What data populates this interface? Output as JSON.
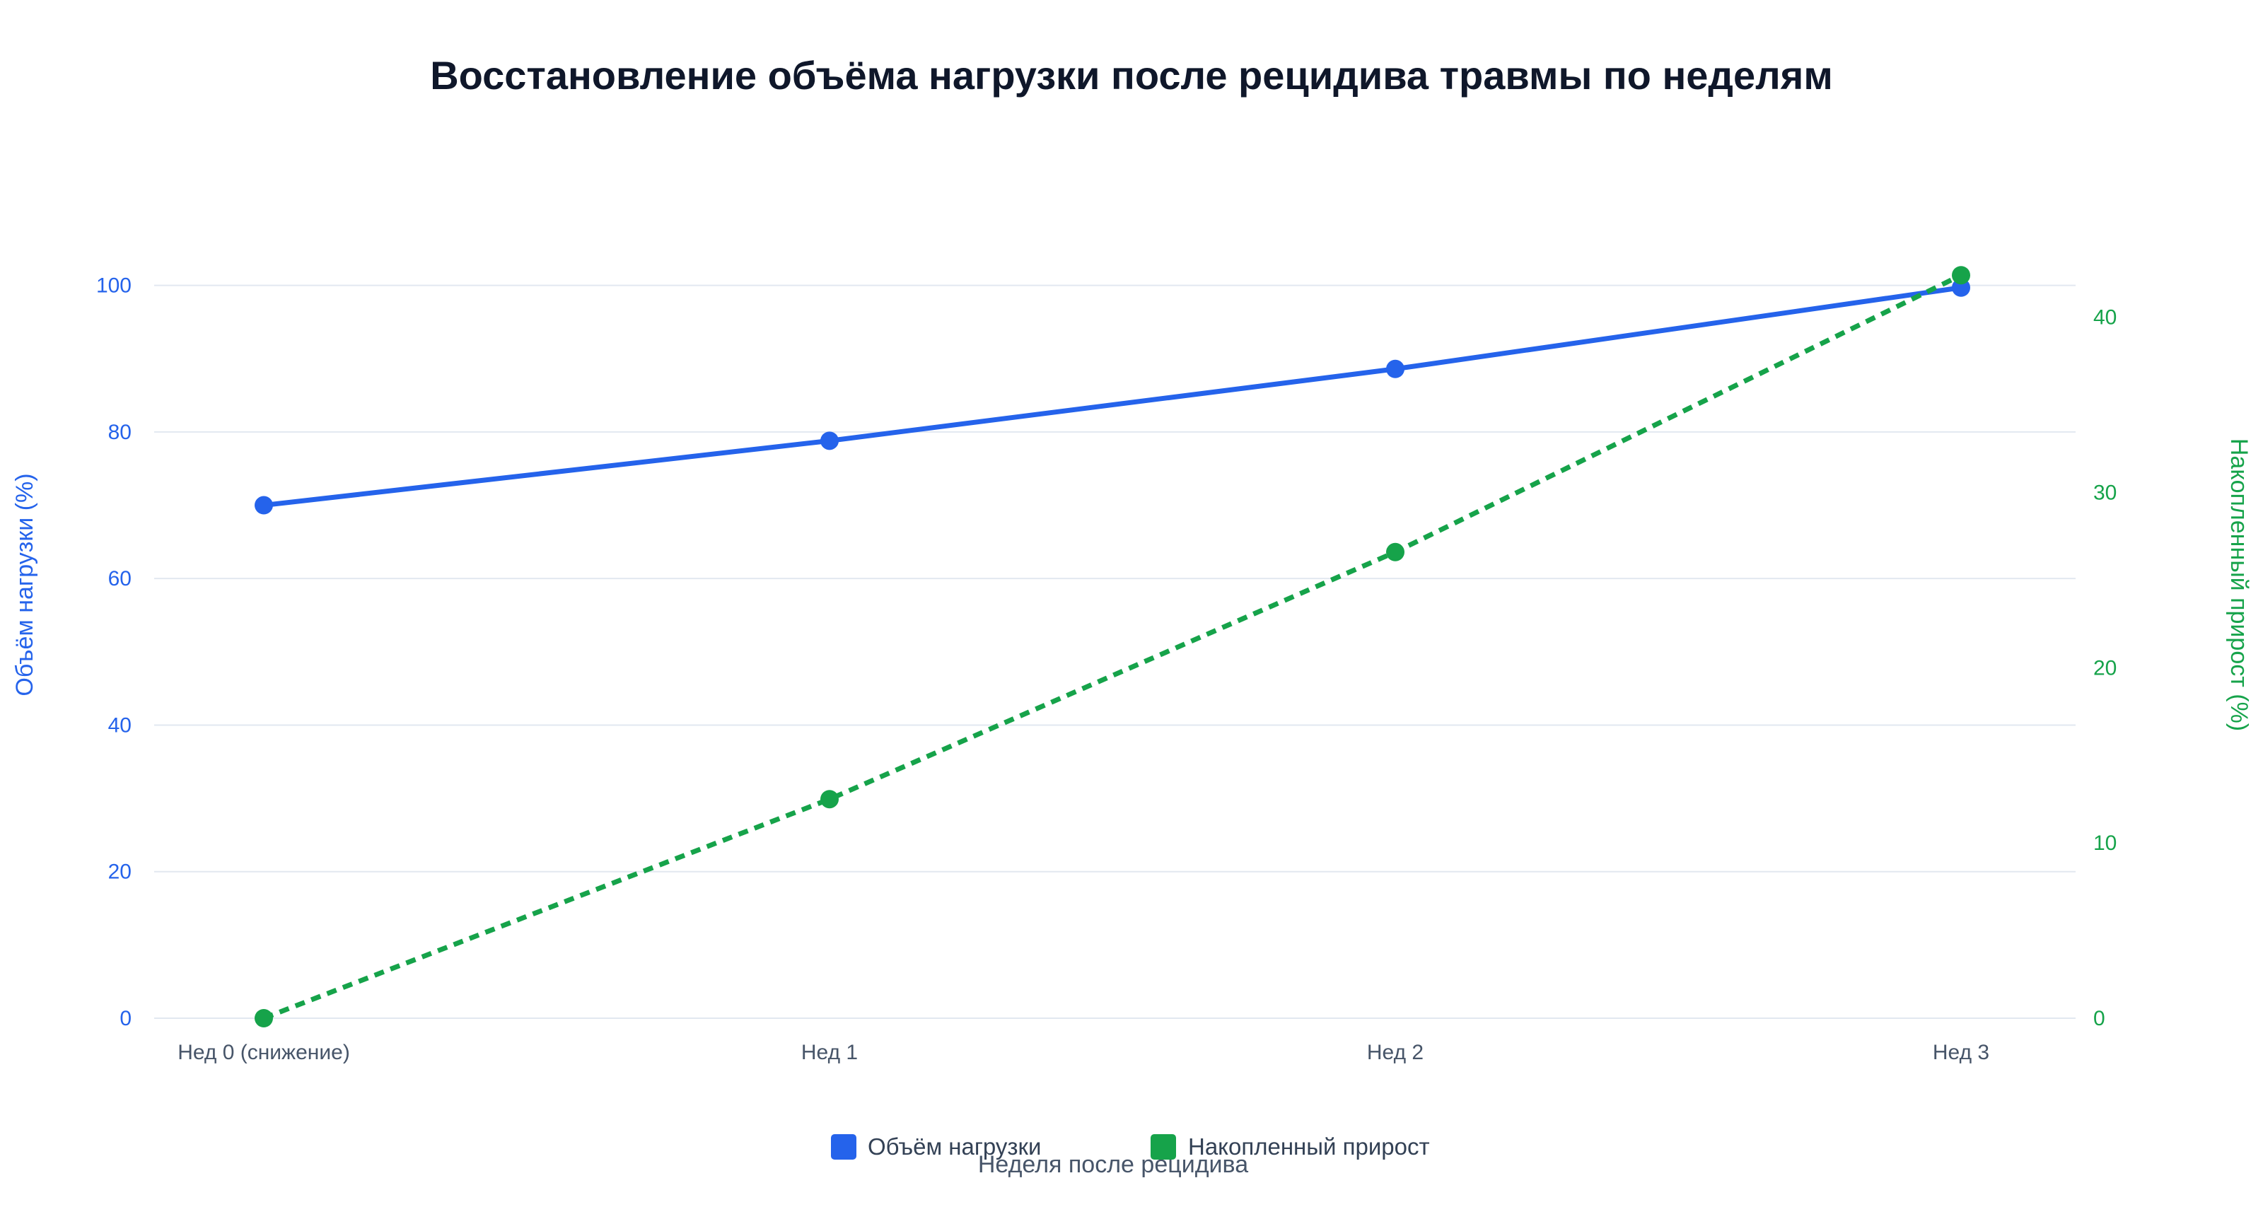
{
  "chart_data": {
    "type": "line",
    "title": "Восстановление объёма нагрузки после рецидива травмы по неделям",
    "xlabel": "Неделя после рецидива",
    "categories": [
      "Нед 0 (снижение)",
      "Нед 1",
      "Нед 2",
      "Нед 3"
    ],
    "y_left": {
      "label": "Объём нагрузки (%)",
      "ylim": [
        0,
        110
      ],
      "ticks": [
        0,
        20,
        40,
        60,
        80,
        100
      ],
      "color": "#2563eb"
    },
    "y_right": {
      "label": "Накопленный прирост (%)",
      "ylim": [
        0,
        46
      ],
      "ticks": [
        0,
        10,
        20,
        30,
        40
      ],
      "color": "#16a34a"
    },
    "series": [
      {
        "name": "Объём нагрузки",
        "axis": "left",
        "values": [
          70,
          78.8,
          88.6,
          99.7
        ],
        "color": "#2563eb",
        "dash": false
      },
      {
        "name": "Накопленный прирост",
        "axis": "right",
        "values": [
          0,
          12.5,
          26.6,
          42.4
        ],
        "color": "#16a34a",
        "dash": true
      }
    ],
    "grid": true,
    "legend_position": "bottom-center"
  }
}
